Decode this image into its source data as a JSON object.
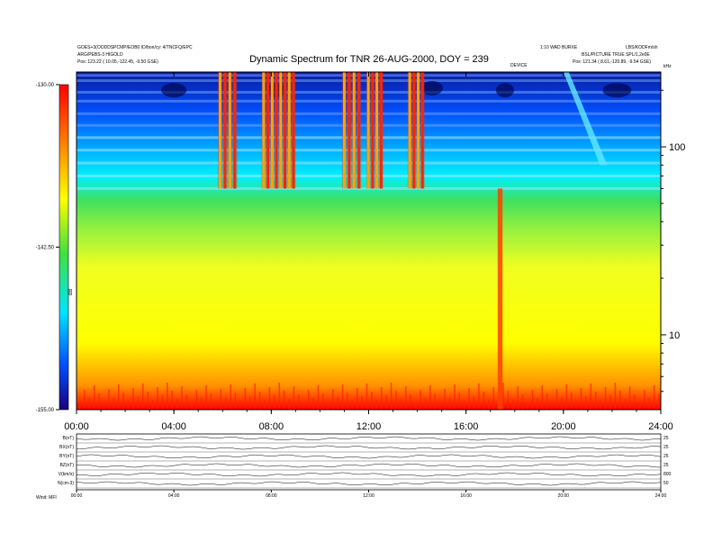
{
  "chart_data": {
    "type": "heatmap",
    "title": "Dynamic Spectrum for TNR 26-AUG-2000, DOY = 239",
    "x_tick_labels": [
      "00:00",
      "04:00",
      "08:00",
      "12:00",
      "16:00",
      "20:00",
      "24:00"
    ],
    "x_range_hours": [
      0,
      24
    ],
    "y_right_tick_labels": [
      "10",
      "100"
    ],
    "y_right_unit": "kHz",
    "y_range_khz": [
      4,
      250
    ],
    "y_log_scale": true,
    "colorbar_tick_labels": [
      "-130.00",
      "-142.50",
      "-155.00"
    ],
    "colorbar_range_db": [
      -155,
      -130
    ],
    "colorbar_label": "dB",
    "colormap": [
      "#1a0080",
      "#0050ff",
      "#00e5ff",
      "#40e040",
      "#ffff00",
      "#ff8000",
      "#ff0000"
    ],
    "header_left_line1": "GOES+3(OODDSPCMP/EOB0 ID/bon/cy: 4/TNCFQ/EPC",
    "header_left_line2": "ARG/PEBS-3 HIGOLD",
    "header_left_line3": "Pos: 123.22 ( 10.05,-122.45, -9.50 GSE)",
    "header_right_line1": "1:10 WAD BURXE",
    "header_right_line2": "LBS/KODFm/sh",
    "header_right_line3": "BSL/PICTURE TRUE SPL/1,2e0E",
    "header_right_line4": "Pos: 121.34 ( 8.61,-120.89, -9.54 GSE)",
    "header_center_small": "DEVICE",
    "field_panel_labels": [
      "B(nT)",
      "BX(nT)",
      "BY(nT)",
      "BZ(nT)",
      "V(km/s)",
      "N(cm-3)"
    ],
    "field_panel_right_values": [
      "25",
      "25",
      "25",
      "25",
      "800",
      "50"
    ],
    "bottom_tick_labels": [
      "00:00",
      "04:00",
      "08:00",
      "12:00",
      "16:00",
      "20:00",
      "24:00"
    ],
    "footer_label": "Wind: MFI",
    "events": [
      {
        "type": "type-III-burst",
        "start_hours": 5.8,
        "end_hours": 6.6,
        "min_freq_khz": 60
      },
      {
        "type": "type-III-burst",
        "start_hours": 7.6,
        "end_hours": 9.0,
        "min_freq_khz": 60
      },
      {
        "type": "type-III-burst",
        "start_hours": 10.9,
        "end_hours": 11.7,
        "min_freq_khz": 60
      },
      {
        "type": "type-III-burst",
        "start_hours": 11.9,
        "end_hours": 12.6,
        "min_freq_khz": 60
      },
      {
        "type": "type-III-burst",
        "start_hours": 13.6,
        "end_hours": 14.3,
        "min_freq_khz": 60
      },
      {
        "type": "local-emission",
        "start_hours": 17.3,
        "end_hours": 17.5,
        "min_freq_khz": 4
      },
      {
        "type": "type-II-drift",
        "start_hours": 20.0,
        "end_hours": 21.8,
        "min_freq_khz": 80
      }
    ]
  }
}
